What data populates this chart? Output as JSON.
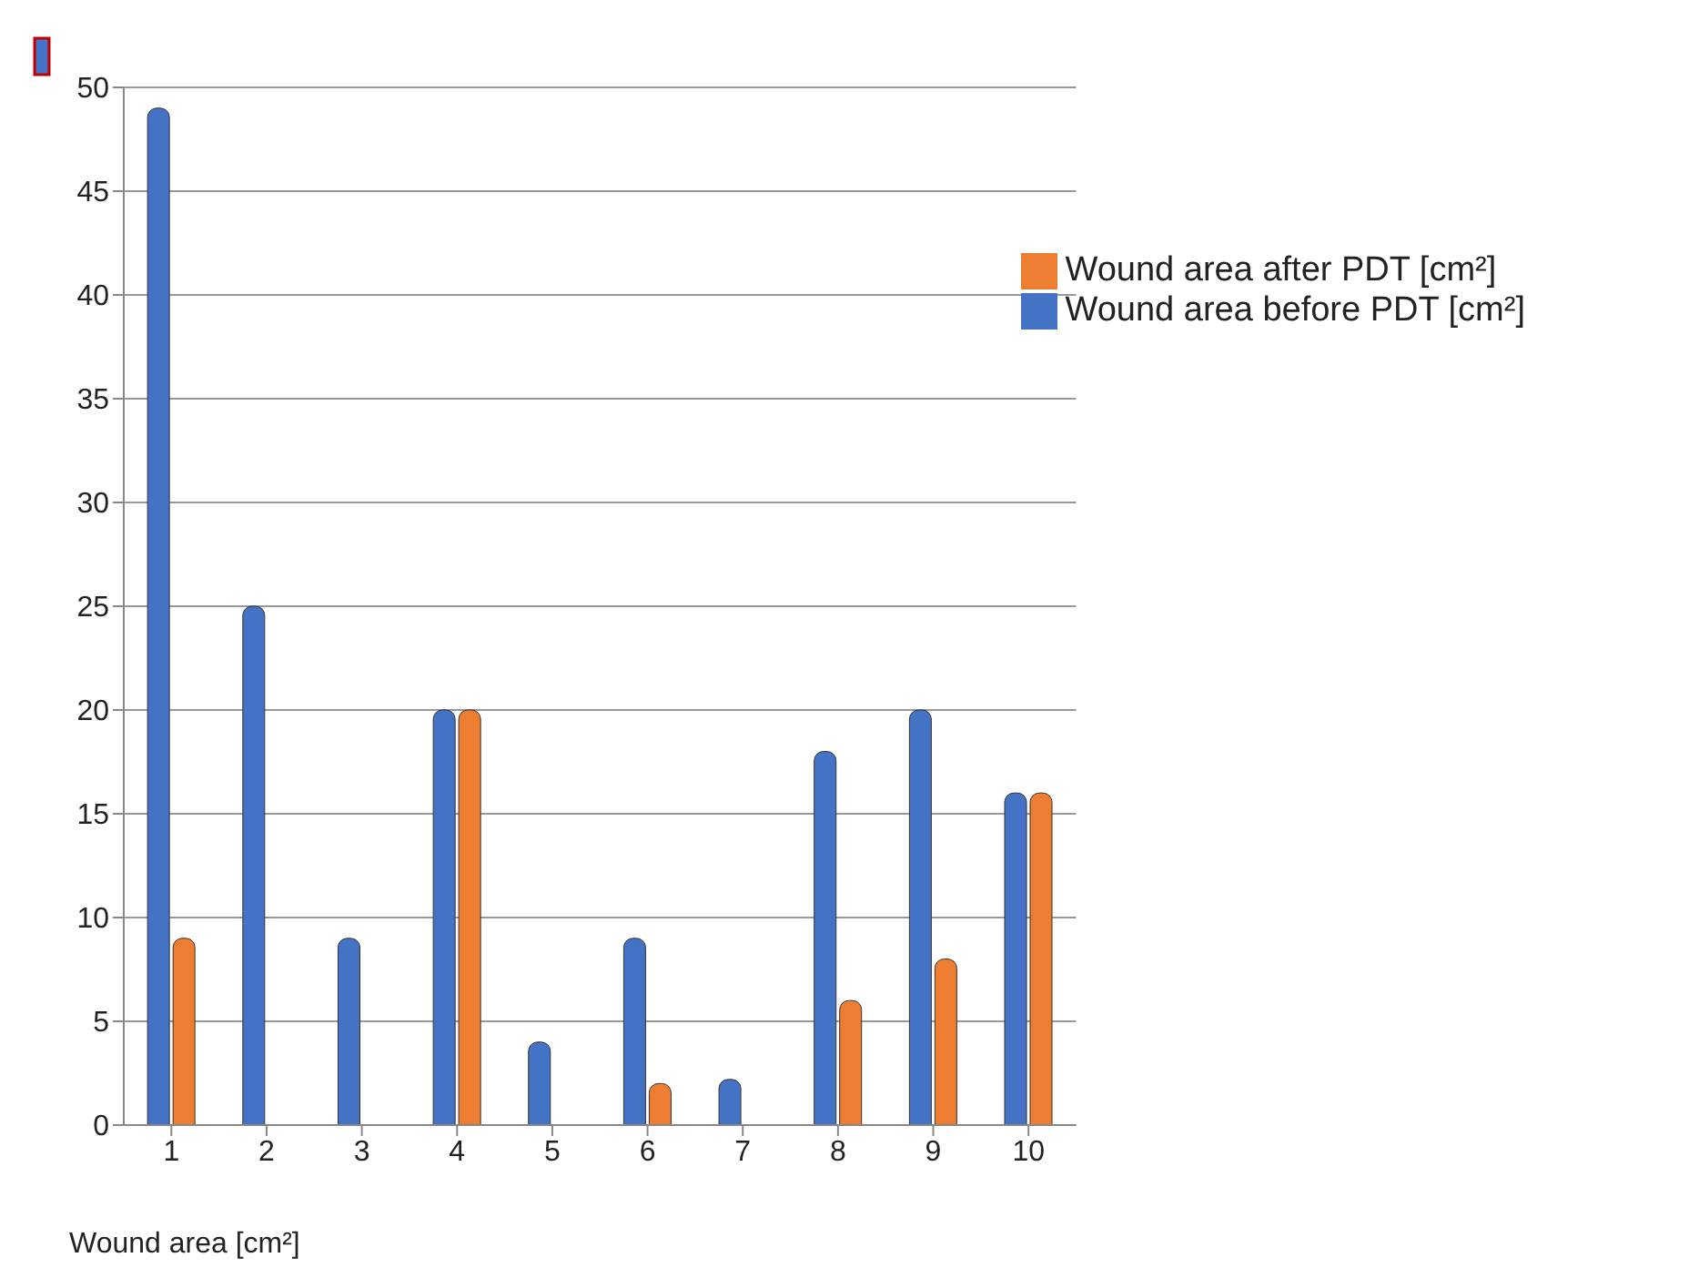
{
  "chart_data": {
    "type": "bar",
    "xlabel": "Wound area [cm²]",
    "categories": [
      "1",
      "2",
      "3",
      "4",
      "5",
      "6",
      "7",
      "8",
      "9",
      "10"
    ],
    "series": [
      {
        "name": "Wound area before PDT [cm²]",
        "color": "#4472c4",
        "values": [
          49,
          25,
          9,
          20,
          4,
          9,
          2.2,
          18,
          20,
          16
        ]
      },
      {
        "name": "Wound area after PDT [cm²]",
        "color": "#ed7d31",
        "values": [
          9,
          0,
          0,
          20,
          0,
          2,
          0,
          6,
          8,
          16
        ]
      }
    ],
    "ylim": [
      0,
      50
    ],
    "yticks": [
      0,
      5,
      10,
      15,
      20,
      25,
      30,
      35,
      40,
      45,
      50
    ],
    "grid": "y",
    "legend": "top right"
  }
}
